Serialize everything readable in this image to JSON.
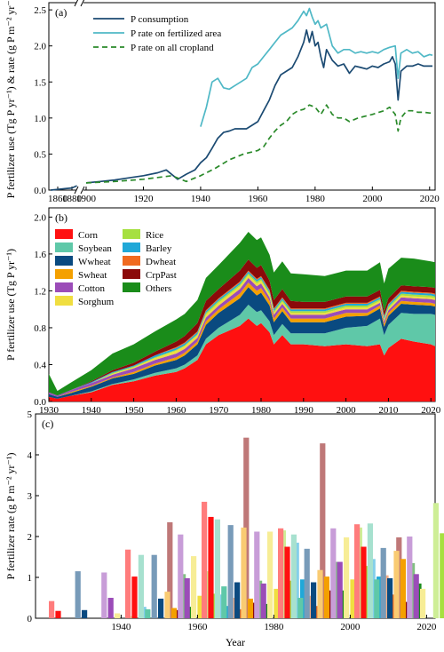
{
  "colors": {
    "p_consumption": "#1b4a72",
    "p_rate_fertilized": "#4fb8c6",
    "p_rate_all": "#2a8a2a",
    "crops": {
      "Corn": "#ff1010",
      "Soybean": "#5fc8a8",
      "Wwheat": "#0a4a80",
      "Swheat": "#f4a000",
      "Cotton": "#9b4cb8",
      "Sorghum": "#f0de40",
      "Rice": "#a6e040",
      "Barley": "#20a8d8",
      "Dwheat": "#f06a20",
      "CrpPast": "#8b0a0a",
      "Others": "#1a8c1a"
    }
  },
  "shared_xlabel": "Year",
  "chart_data": [
    {
      "panel": "(a)",
      "type": "line",
      "ylabel": "P fertilizer use (Tg P yr⁻¹) & rate (g P m⁻² yr⁻¹)",
      "ylim": [
        0,
        2.6
      ],
      "yticks": [
        "0.0",
        "0.5",
        "1.0",
        "1.5",
        "2.0",
        "2.5"
      ],
      "xticks": [
        "1860",
        "1880",
        "1900",
        "1920",
        "1940",
        "1960",
        "1980",
        "2000",
        "2020"
      ],
      "axis_break": "1890-1900",
      "legend_position": "top-left",
      "series": [
        {
          "name": "P consumption",
          "style": "solid",
          "x": [
            1850,
            1860,
            1870,
            1880,
            1887,
            1900,
            1905,
            1910,
            1915,
            1920,
            1925,
            1928,
            1932,
            1935,
            1938,
            1940,
            1942,
            1944,
            1946,
            1948,
            1950,
            1952,
            1954,
            1956,
            1958,
            1960,
            1962,
            1964,
            1966,
            1968,
            1970,
            1972,
            1974,
            1976,
            1977,
            1978,
            1979,
            1980,
            1981,
            1982,
            1983,
            1984,
            1986,
            1988,
            1990,
            1992,
            1994,
            1996,
            1998,
            2000,
            2002,
            2004,
            2006,
            2007,
            2008,
            2009,
            2010,
            2012,
            2014,
            2016,
            2018,
            2020,
            2021
          ],
          "y": [
            0.0,
            0.01,
            0.02,
            0.03,
            0.06,
            0.1,
            0.12,
            0.14,
            0.17,
            0.2,
            0.24,
            0.28,
            0.15,
            0.22,
            0.28,
            0.38,
            0.45,
            0.58,
            0.72,
            0.8,
            0.82,
            0.85,
            0.85,
            0.85,
            0.9,
            0.95,
            1.1,
            1.25,
            1.45,
            1.6,
            1.65,
            1.7,
            1.85,
            2.05,
            2.22,
            2.05,
            2.2,
            2.0,
            2.05,
            1.85,
            1.7,
            1.95,
            1.8,
            1.72,
            1.75,
            1.62,
            1.72,
            1.7,
            1.68,
            1.72,
            1.7,
            1.75,
            1.78,
            1.85,
            1.75,
            1.25,
            1.65,
            1.72,
            1.72,
            1.75,
            1.72,
            1.72,
            1.72
          ]
        },
        {
          "name": "P rate on fertilized area",
          "style": "solid",
          "x": [
            1940,
            1942,
            1944,
            1946,
            1948,
            1950,
            1952,
            1954,
            1956,
            1958,
            1960,
            1962,
            1964,
            1966,
            1968,
            1970,
            1972,
            1974,
            1976,
            1977,
            1978,
            1979,
            1980,
            1981,
            1982,
            1984,
            1986,
            1988,
            1990,
            1992,
            1994,
            1996,
            1998,
            2000,
            2002,
            2004,
            2006,
            2008,
            2009,
            2010,
            2012,
            2014,
            2016,
            2018,
            2020,
            2021
          ],
          "y": [
            0.88,
            1.15,
            1.5,
            1.55,
            1.42,
            1.4,
            1.45,
            1.5,
            1.55,
            1.7,
            1.75,
            1.85,
            1.95,
            2.05,
            2.15,
            2.2,
            2.25,
            2.35,
            2.48,
            2.42,
            2.52,
            2.4,
            2.3,
            2.35,
            2.25,
            2.3,
            2.0,
            1.9,
            1.95,
            1.95,
            1.9,
            1.92,
            1.9,
            1.92,
            1.9,
            1.95,
            1.98,
            2.0,
            1.55,
            1.9,
            1.95,
            1.9,
            1.92,
            1.85,
            1.88,
            1.87
          ]
        },
        {
          "name": "P rate on all cropland",
          "style": "dashed",
          "x": [
            1900,
            1910,
            1920,
            1930,
            1935,
            1940,
            1945,
            1950,
            1955,
            1960,
            1962,
            1964,
            1966,
            1968,
            1970,
            1972,
            1974,
            1976,
            1978,
            1980,
            1982,
            1984,
            1986,
            1988,
            1990,
            1992,
            1995,
            2000,
            2004,
            2006,
            2008,
            2009,
            2010,
            2012,
            2014,
            2016,
            2018,
            2020,
            2021
          ],
          "y": [
            0.1,
            0.12,
            0.15,
            0.2,
            0.12,
            0.2,
            0.3,
            0.42,
            0.5,
            0.55,
            0.6,
            0.72,
            0.82,
            0.9,
            0.95,
            1.05,
            1.1,
            1.12,
            1.18,
            1.15,
            1.05,
            1.18,
            1.05,
            1.0,
            1.0,
            0.95,
            1.0,
            1.05,
            1.1,
            1.15,
            1.05,
            0.82,
            1.0,
            1.1,
            1.1,
            1.08,
            1.08,
            1.07,
            1.07
          ]
        }
      ]
    },
    {
      "panel": "(b)",
      "type": "area",
      "stacked": true,
      "ylabel": "P fertilizer use (Tg P yr⁻¹)",
      "xlim": [
        1930,
        2021
      ],
      "ylim": [
        0,
        2.1
      ],
      "yticks": [
        "0.0",
        "0.4",
        "0.8",
        "1.2",
        "1.6",
        "2.0"
      ],
      "xticks": [
        "1930",
        "1940",
        "1950",
        "1960",
        "1970",
        "1980",
        "1990",
        "2000",
        "2010",
        "2020"
      ],
      "legend_position": "top-left",
      "x": [
        1930,
        1932,
        1935,
        1940,
        1945,
        1950,
        1955,
        1960,
        1962,
        1965,
        1967,
        1970,
        1975,
        1977,
        1979,
        1980,
        1982,
        1983,
        1985,
        1987,
        1990,
        1995,
        2000,
        2005,
        2008,
        2009,
        2010,
        2013,
        2016,
        2020,
        2021
      ],
      "series": [
        {
          "name": "Corn",
          "values": [
            0.05,
            0.03,
            0.06,
            0.1,
            0.18,
            0.22,
            0.28,
            0.32,
            0.36,
            0.45,
            0.62,
            0.72,
            0.82,
            0.9,
            0.82,
            0.85,
            0.75,
            0.62,
            0.72,
            0.62,
            0.62,
            0.6,
            0.62,
            0.6,
            0.62,
            0.5,
            0.58,
            0.68,
            0.65,
            0.62,
            0.6
          ]
        },
        {
          "name": "Soybean",
          "values": [
            0.0,
            0.0,
            0.0,
            0.01,
            0.01,
            0.02,
            0.03,
            0.04,
            0.04,
            0.05,
            0.06,
            0.08,
            0.12,
            0.15,
            0.15,
            0.14,
            0.12,
            0.1,
            0.12,
            0.12,
            0.12,
            0.14,
            0.18,
            0.22,
            0.28,
            0.22,
            0.25,
            0.28,
            0.3,
            0.33,
            0.34
          ]
        },
        {
          "name": "Wwheat",
          "values": [
            0.03,
            0.02,
            0.03,
            0.05,
            0.06,
            0.06,
            0.08,
            0.09,
            0.1,
            0.12,
            0.15,
            0.16,
            0.18,
            0.19,
            0.18,
            0.19,
            0.17,
            0.14,
            0.14,
            0.12,
            0.12,
            0.12,
            0.12,
            0.11,
            0.11,
            0.09,
            0.1,
            0.1,
            0.1,
            0.09,
            0.09
          ]
        },
        {
          "name": "Swheat",
          "values": [
            0.0,
            0.0,
            0.01,
            0.01,
            0.01,
            0.02,
            0.02,
            0.03,
            0.03,
            0.03,
            0.04,
            0.04,
            0.05,
            0.05,
            0.05,
            0.05,
            0.05,
            0.04,
            0.04,
            0.04,
            0.04,
            0.04,
            0.04,
            0.03,
            0.03,
            0.03,
            0.03,
            0.03,
            0.03,
            0.03,
            0.03
          ]
        },
        {
          "name": "Cotton",
          "values": [
            0.02,
            0.015,
            0.02,
            0.03,
            0.03,
            0.04,
            0.04,
            0.04,
            0.04,
            0.04,
            0.04,
            0.04,
            0.05,
            0.05,
            0.05,
            0.05,
            0.04,
            0.04,
            0.04,
            0.04,
            0.04,
            0.04,
            0.04,
            0.04,
            0.03,
            0.03,
            0.03,
            0.04,
            0.04,
            0.04,
            0.04
          ]
        },
        {
          "name": "Sorghum",
          "values": [
            0.0,
            0.0,
            0.0,
            0.0,
            0.01,
            0.01,
            0.02,
            0.03,
            0.03,
            0.03,
            0.03,
            0.03,
            0.03,
            0.03,
            0.03,
            0.03,
            0.03,
            0.02,
            0.02,
            0.02,
            0.02,
            0.02,
            0.02,
            0.02,
            0.02,
            0.01,
            0.02,
            0.02,
            0.02,
            0.02,
            0.02
          ]
        },
        {
          "name": "Rice",
          "values": [
            0.0,
            0.0,
            0.0,
            0.0,
            0.01,
            0.01,
            0.01,
            0.01,
            0.01,
            0.01,
            0.02,
            0.02,
            0.02,
            0.02,
            0.02,
            0.02,
            0.02,
            0.02,
            0.02,
            0.02,
            0.02,
            0.02,
            0.02,
            0.02,
            0.02,
            0.02,
            0.02,
            0.02,
            0.02,
            0.02,
            0.02
          ]
        },
        {
          "name": "Barley",
          "values": [
            0.0,
            0.0,
            0.0,
            0.01,
            0.01,
            0.01,
            0.02,
            0.02,
            0.02,
            0.02,
            0.02,
            0.02,
            0.02,
            0.02,
            0.02,
            0.02,
            0.02,
            0.02,
            0.02,
            0.02,
            0.02,
            0.02,
            0.02,
            0.02,
            0.02,
            0.02,
            0.02,
            0.02,
            0.02,
            0.02,
            0.02
          ]
        },
        {
          "name": "Dwheat",
          "values": [
            0.0,
            0.0,
            0.0,
            0.0,
            0.0,
            0.0,
            0.0,
            0.01,
            0.01,
            0.01,
            0.01,
            0.01,
            0.01,
            0.01,
            0.01,
            0.01,
            0.01,
            0.01,
            0.01,
            0.01,
            0.01,
            0.01,
            0.01,
            0.01,
            0.01,
            0.01,
            0.01,
            0.01,
            0.01,
            0.01,
            0.01
          ]
        },
        {
          "name": "CrpPast",
          "values": [
            0.0,
            0.0,
            0.0,
            0.01,
            0.02,
            0.03,
            0.04,
            0.06,
            0.07,
            0.09,
            0.1,
            0.1,
            0.12,
            0.12,
            0.12,
            0.12,
            0.1,
            0.09,
            0.09,
            0.08,
            0.07,
            0.07,
            0.07,
            0.07,
            0.07,
            0.05,
            0.06,
            0.06,
            0.06,
            0.06,
            0.06
          ]
        },
        {
          "name": "Others",
          "values": [
            0.2,
            0.05,
            0.08,
            0.12,
            0.18,
            0.2,
            0.22,
            0.24,
            0.24,
            0.25,
            0.25,
            0.26,
            0.3,
            0.3,
            0.3,
            0.3,
            0.28,
            0.3,
            0.3,
            0.3,
            0.3,
            0.28,
            0.28,
            0.28,
            0.3,
            0.3,
            0.32,
            0.3,
            0.3,
            0.28,
            0.28
          ]
        }
      ]
    },
    {
      "panel": "(c)",
      "type": "bar",
      "ylabel": "P fertilizer rate (g P m⁻² yr⁻¹)",
      "ylim": [
        0,
        5
      ],
      "yticks": [
        "0",
        "1",
        "2",
        "3",
        "4",
        "5"
      ],
      "xticks": [
        "1940",
        "1960",
        "1980",
        "2000",
        "2020"
      ],
      "xlabel": "Year",
      "crop_order": [
        "Corn",
        "Soybean",
        "Wwheat",
        "Swheat",
        "Cotton",
        "Sorghum",
        "Rice",
        "Barley",
        "Dwheat",
        "CrpPast",
        "Others"
      ],
      "groups": [
        {
          "year": "1940",
          "pale": [
            0.42,
            0.0,
            1.15,
            0.0,
            1.12,
            0.12,
            0.05,
            0.28,
            0.0,
            2.35,
            1.08
          ],
          "dark": [
            0.18,
            0.0,
            0.2,
            0.0,
            0.5,
            0.0,
            0.0,
            0.0,
            0.0,
            0.2,
            0.28
          ]
        },
        {
          "year": "1960",
          "pale": [
            1.68,
            1.55,
            1.55,
            0.65,
            2.05,
            1.52,
            1.15,
            0.58,
            0.5,
            4.42,
            0.92
          ],
          "dark": [
            1.02,
            0.22,
            0.48,
            0.25,
            0.98,
            0.55,
            0.6,
            0.3,
            0.22,
            0.38,
            0.35
          ]
        },
        {
          "year": "1980",
          "pale": [
            2.85,
            2.42,
            2.28,
            2.22,
            2.12,
            2.12,
            2.15,
            1.85,
            0.55,
            4.28,
            1.38
          ],
          "dark": [
            2.48,
            0.78,
            0.88,
            0.48,
            0.85,
            0.72,
            0.92,
            0.95,
            0.3,
            0.68,
            0.68
          ]
        },
        {
          "year": "2000",
          "pale": [
            2.2,
            2.05,
            1.7,
            1.18,
            2.2,
            1.98,
            2.22,
            1.45,
            1.05,
            1.98,
            1.35
          ],
          "dark": [
            1.75,
            0.5,
            0.88,
            1.02,
            1.38,
            0.95,
            1.28,
            1.02,
            0.58,
            0.4,
            0.85
          ]
        },
        {
          "year": "2020",
          "pale": [
            2.3,
            2.32,
            1.72,
            1.65,
            2.0,
            0.72,
            2.82,
            1.22,
            1.22,
            1.25,
            1.32
          ],
          "dark": [
            1.75,
            0.95,
            0.98,
            1.45,
            1.08,
            0.0,
            2.08,
            1.15,
            1.02,
            0.28,
            0.9
          ]
        }
      ]
    }
  ]
}
